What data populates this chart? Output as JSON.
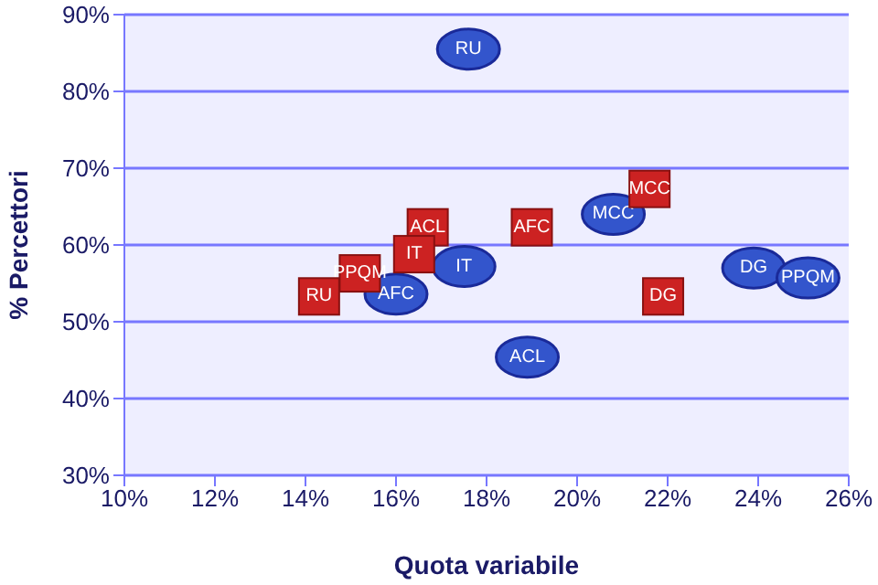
{
  "chart_data": {
    "type": "scatter",
    "xlabel": "Quota variabile",
    "ylabel": "% Percettori",
    "xlim": [
      10,
      26
    ],
    "xticks": [
      {
        "value": 10,
        "label": "10%"
      },
      {
        "value": 12,
        "label": "12%"
      },
      {
        "value": 14,
        "label": "14%"
      },
      {
        "value": 16,
        "label": "16%"
      },
      {
        "value": 18,
        "label": "18%"
      },
      {
        "value": 20,
        "label": "20%"
      },
      {
        "value": 22,
        "label": "22%"
      },
      {
        "value": 24,
        "label": "24%"
      },
      {
        "value": 26,
        "label": "26%"
      }
    ],
    "ylim": [
      30,
      90
    ],
    "yticks": [
      {
        "value": 30,
        "label": "30%"
      },
      {
        "value": 40,
        "label": "40%"
      },
      {
        "value": 50,
        "label": "50%"
      },
      {
        "value": 60,
        "label": "60%"
      },
      {
        "value": 70,
        "label": "70%"
      },
      {
        "value": 80,
        "label": "80%"
      },
      {
        "value": 90,
        "label": "90%"
      }
    ],
    "grid": "y",
    "legend": false,
    "series": [
      {
        "color": "#3355cc",
        "marker": "circle",
        "x": [
          17.6,
          20.8,
          17.5,
          16.0,
          18.9,
          23.9,
          25.1
        ],
        "values": [
          85.5,
          64,
          57.2,
          53.6,
          45.4,
          57,
          55.7
        ],
        "value_labels": [
          "RU",
          "MCC",
          "IT",
          "AFC",
          "ACL",
          "DG",
          "PPQM"
        ]
      },
      {
        "color": "#cc2222",
        "marker": "square",
        "x": [
          21.6,
          16.7,
          19.0,
          16.4,
          15.2,
          14.3,
          21.9
        ],
        "values": [
          67.3,
          62.3,
          62.3,
          58.8,
          56.3,
          53.3,
          53.3
        ],
        "value_labels": [
          "MCC",
          "ACL",
          "AFC",
          "IT",
          "PPQM",
          "RU",
          "DG"
        ]
      }
    ]
  }
}
